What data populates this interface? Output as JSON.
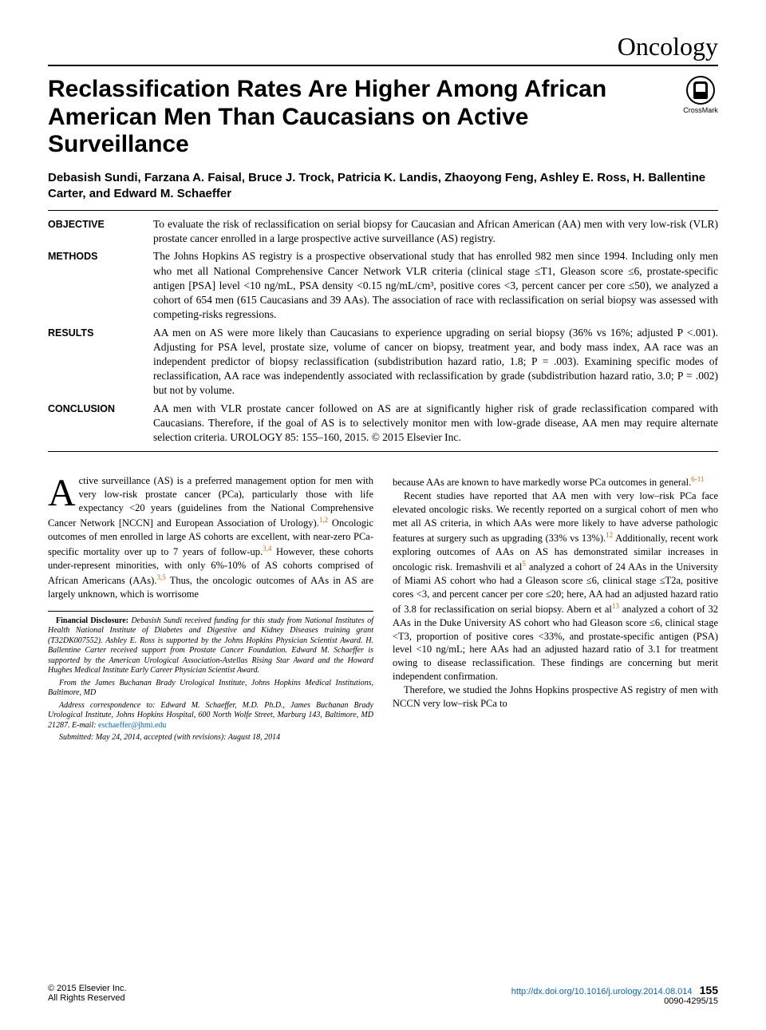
{
  "section": "Oncology",
  "title": "Reclassification Rates Are Higher Among African American Men Than Caucasians on Active Surveillance",
  "crossmark_label": "CrossMark",
  "authors": "Debasish Sundi, Farzana A. Faisal, Bruce J. Trock, Patricia K. Landis, Zhaoyong Feng, Ashley E. Ross, H. Ballentine Carter, and Edward M. Schaeffer",
  "abstract": {
    "objective": {
      "label": "OBJECTIVE",
      "text": "To evaluate the risk of reclassification on serial biopsy for Caucasian and African American (AA) men with very low-risk (VLR) prostate cancer enrolled in a large prospective active surveillance (AS) registry."
    },
    "methods": {
      "label": "METHODS",
      "text": "The Johns Hopkins AS registry is a prospective observational study that has enrolled 982 men since 1994. Including only men who met all National Comprehensive Cancer Network VLR criteria (clinical stage ≤T1, Gleason score ≤6, prostate-specific antigen [PSA] level <10 ng/mL, PSA density <0.15 ng/mL/cm³, positive cores <3, percent cancer per core ≤50), we analyzed a cohort of 654 men (615 Caucasians and 39 AAs). The association of race with reclassification on serial biopsy was assessed with competing-risks regressions."
    },
    "results": {
      "label": "RESULTS",
      "text": "AA men on AS were more likely than Caucasians to experience upgrading on serial biopsy (36% vs 16%; adjusted P <.001). Adjusting for PSA level, prostate size, volume of cancer on biopsy, treatment year, and body mass index, AA race was an independent predictor of biopsy reclassification (subdistribution hazard ratio, 1.8; P = .003). Examining specific modes of reclassification, AA race was independently associated with reclassification by grade (subdistribution hazard ratio, 3.0; P = .002) but not by volume."
    },
    "conclusion": {
      "label": "CONCLUSION",
      "text": "AA men with VLR prostate cancer followed on AS are at significantly higher risk of grade reclassification compared with Caucasians. Therefore, if the goal of AS is to selectively monitor men with low-grade disease, AA men may require alternate selection criteria.  UROLOGY 85: 155–160, 2015. © 2015 Elsevier Inc."
    }
  },
  "body": {
    "col1_p1_dropcap": "A",
    "col1_p1": "ctive surveillance (AS) is a preferred management option for men with very low-risk prostate cancer (PCa), particularly those with life expectancy <20 years (guidelines from the National Comprehensive Cancer Network [NCCN] and European Association of Urology).",
    "col1_p1_sup1": "1,2",
    "col1_p1b": " Oncologic outcomes of men enrolled in large AS cohorts are excellent, with near-zero PCa-specific mortality over up to 7 years of follow-up.",
    "col1_p1_sup2": "3,4",
    "col1_p1c": " However, these cohorts under-represent minorities, with only 6%-10% of AS cohorts comprised of African Americans (AAs).",
    "col1_p1_sup3": "3,5",
    "col1_p1d": " Thus, the oncologic outcomes of AAs in AS are largely unknown, which is worrisome",
    "col2_p1": "because AAs are known to have markedly worse PCa outcomes in general.",
    "col2_p1_sup": "6-11",
    "col2_p2a": "Recent studies have reported that AA men with very low–risk PCa face elevated oncologic risks. We recently reported on a surgical cohort of men who met all AS criteria, in which AAs were more likely to have adverse pathologic features at surgery such as upgrading (33% vs 13%).",
    "col2_p2_sup1": "12",
    "col2_p2b": " Additionally, recent work exploring outcomes of AAs on AS has demonstrated similar increases in oncologic risk. Iremashvili et al",
    "col2_p2_sup2": "5",
    "col2_p2c": " analyzed a cohort of 24 AAs in the University of Miami AS cohort who had a Gleason score ≤6, clinical stage ≤T2a, positive cores <3, and percent cancer per core ≤20; here, AA had an adjusted hazard ratio of 3.8 for reclassification on serial biopsy. Abern et al",
    "col2_p2_sup3": "13",
    "col2_p2d": " analyzed a cohort of 32 AAs in the Duke University AS cohort who had Gleason score ≤6, clinical stage <T3, proportion of positive cores <33%, and prostate-specific antigen (PSA) level <10 ng/mL; here AAs had an adjusted hazard ratio of 3.1 for treatment owing to disease reclassification. These findings are concerning but merit independent confirmation.",
    "col2_p3": "Therefore, we studied the Johns Hopkins prospective AS registry of men with NCCN very low–risk PCa to"
  },
  "footnotes": {
    "financial_label": "Financial Disclosure:",
    "financial": " Debasish Sundi received funding for this study from National Institutes of Health National Institute of Diabetes and Digestive and Kidney Diseases training grant (T32DK007552). Ashley E. Ross is supported by the Johns Hopkins Physician Scientist Award. H. Ballentine Carter received support from Prostate Cancer Foundation. Edward M. Schaeffer is supported by the American Urological Association-Astellas Rising Star Award and the Howard Hughes Medical Institute Early Career Physician Scientist Award.",
    "from": "From the James Buchanan Brady Urological Institute, Johns Hopkins Medical Institutions, Baltimore, MD",
    "address": "Address correspondence to: Edward M. Schaeffer, M.D. Ph.D., James Buchanan Brady Urological Institute, Johns Hopkins Hospital, 600 North Wolfe Street, Marburg 143, Baltimore, MD 21287. E-mail: ",
    "email": "eschaeffer@jhmi.edu",
    "submitted": "Submitted: May 24, 2014, accepted (with revisions): August 18, 2014"
  },
  "footer": {
    "copyright": "© 2015 Elsevier Inc.",
    "rights": "All Rights Reserved",
    "doi": "http://dx.doi.org/10.1016/j.urology.2014.08.014",
    "issn": "0090-4295/15",
    "page": "155"
  },
  "colors": {
    "text": "#000000",
    "link": "#0066cc",
    "sup": "#cc6600",
    "background": "#ffffff"
  },
  "typography": {
    "section_header_size": 32,
    "title_size": 30,
    "authors_size": 15,
    "abstract_size": 13.5,
    "body_size": 12.5,
    "footnote_size": 10,
    "footer_size": 11
  }
}
